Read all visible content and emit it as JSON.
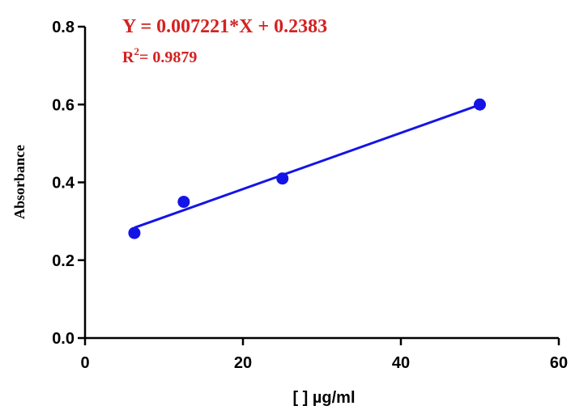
{
  "chart_data": {
    "type": "scatter",
    "xlabel": "[ ] µg/ml",
    "ylabel": "Absorbance",
    "xlim": [
      0,
      60
    ],
    "ylim": [
      0,
      0.8
    ],
    "x_ticks": [
      "0",
      "20",
      "40",
      "60"
    ],
    "y_ticks": [
      "0.0",
      "0.2",
      "0.4",
      "0.6",
      "0.8"
    ],
    "grid": false,
    "series": [
      {
        "x": [
          6.25,
          12.5,
          25,
          50
        ],
        "y": [
          0.27,
          0.35,
          0.41,
          0.6
        ],
        "color": "#1414e6"
      }
    ],
    "fit_line": {
      "slope": 0.007221,
      "intercept": 0.2383,
      "x_range": [
        6.25,
        50
      ],
      "color": "#1414e6"
    },
    "annotations": {
      "equation": "Y = 0.007221*X + 0.2383",
      "r2_prefix": "R",
      "r2_sup": "2",
      "r2_value": "= 0.9879",
      "color": "#d32222"
    }
  }
}
